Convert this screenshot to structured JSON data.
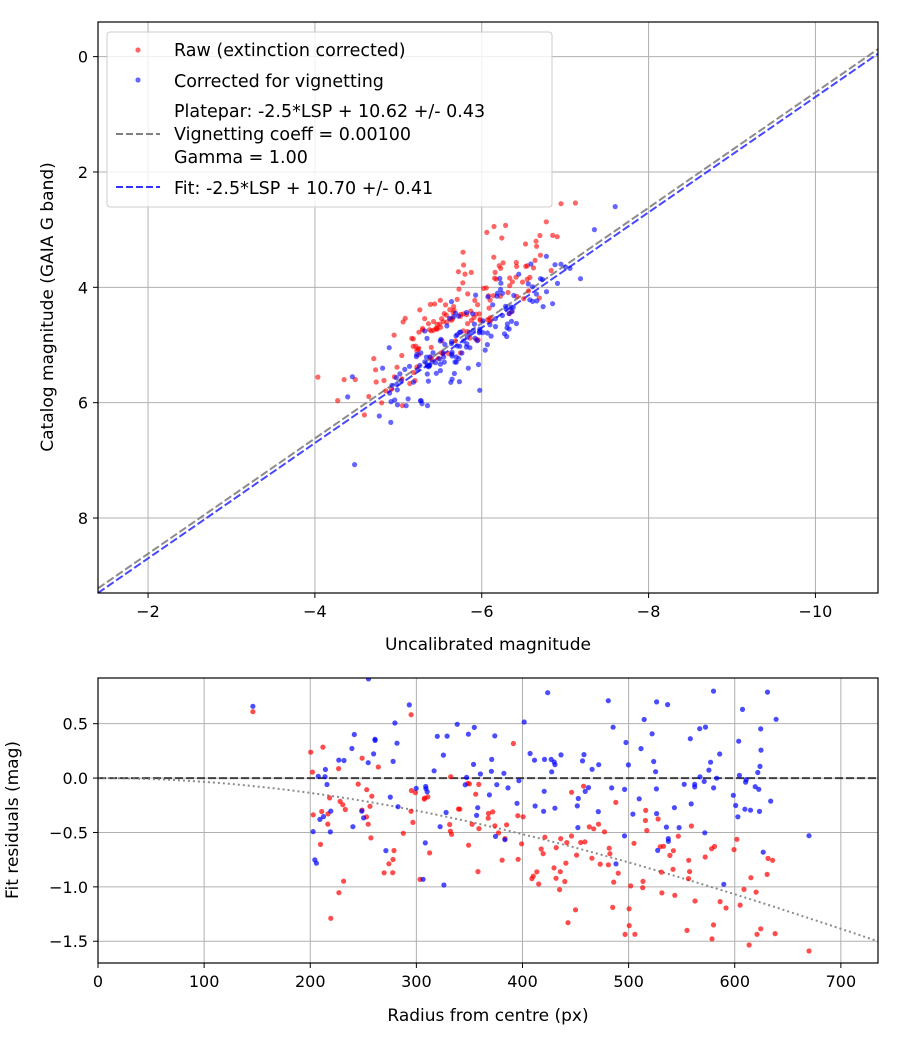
{
  "chart_data": [
    {
      "type": "scatter",
      "xlabel": "Uncalibrated magnitude",
      "ylabel": "Catalog magnitude (GAIA G band)",
      "xlim": [
        -1.4,
        -10.75
      ],
      "ylim": [
        9.3,
        -0.6
      ],
      "xticks": [
        -2,
        -4,
        -6,
        -8,
        -10
      ],
      "xtick_labels": [
        "−2",
        "−4",
        "−6",
        "−8",
        "−10"
      ],
      "yticks": [
        0,
        2,
        4,
        6,
        8
      ],
      "ytick_labels": [
        "0",
        "2",
        "4",
        "6",
        "8"
      ],
      "grid": true,
      "legend_position": "top-left",
      "series": [
        {
          "name": "Raw (extinction corrected)",
          "kind": "scatter",
          "color": "#ff0000",
          "cloud": {
            "count": 150,
            "seed": 7,
            "x_mean": -5.75,
            "x_sd": 0.55,
            "y_intercept": 10.62,
            "slope": 1.0,
            "y_offset": -0.45,
            "y_sd": 0.38,
            "extra_points": [
              [
                -6.95,
                2.55
              ],
              [
                -6.85,
                3.1
              ],
              [
                -6.65,
                3.2
              ],
              [
                -4.35,
                5.6
              ],
              [
                -5.05,
                6.05
              ]
            ]
          }
        },
        {
          "name": "Corrected for vignetting",
          "kind": "scatter",
          "color": "#0000ff",
          "cloud": {
            "count": 150,
            "seed": 13,
            "x_mean": -5.8,
            "x_sd": 0.6,
            "y_intercept": 10.7,
            "slope": 1.0,
            "y_offset": 0.0,
            "y_sd": 0.32,
            "extra_points": [
              [
                -7.6,
                2.6
              ],
              [
                -7.35,
                3.0
              ],
              [
                -4.45,
                5.55
              ],
              [
                -5.35,
                6.05
              ],
              [
                -6.95,
                3.6
              ]
            ]
          }
        },
        {
          "name": "Platepar: -2.5*LSP + 10.62 +/- 0.43",
          "name_lines": [
            "Platepar: -2.5*LSP + 10.62 +/- 0.43",
            "Vignetting coeff = 0.00100",
            "Gamma = 1.00"
          ],
          "kind": "line",
          "style": "dashed",
          "color": "#808080",
          "slope": 1.0,
          "intercept": 10.62
        },
        {
          "name": "Fit: -2.5*LSP + 10.70 +/- 0.41",
          "kind": "line",
          "style": "dashed",
          "color": "#3333ff",
          "slope": 1.0,
          "intercept": 10.7
        }
      ]
    },
    {
      "type": "scatter",
      "xlabel": "Radius from centre (px)",
      "ylabel": "Fit residuals (mag)",
      "xlim": [
        0,
        735
      ],
      "ylim": [
        -1.7,
        0.92
      ],
      "xticks": [
        0,
        100,
        200,
        300,
        400,
        500,
        600,
        700
      ],
      "xtick_labels": [
        "0",
        "100",
        "200",
        "300",
        "400",
        "500",
        "600",
        "700"
      ],
      "yticks": [
        0.5,
        0.0,
        -0.5,
        -1.0,
        -1.5
      ],
      "ytick_labels": [
        "0.5",
        "0.0",
        "−0.5",
        "−1.0",
        "−1.5"
      ],
      "grid": true,
      "series": [
        {
          "kind": "scatter",
          "color": "#ff0000",
          "cloud": {
            "count": 150,
            "seed": 21,
            "x_min": 200,
            "x_max": 640,
            "trend": "vignetting",
            "y_sd": 0.33,
            "extra_points": [
              [
                146,
                0.61
              ],
              [
                670,
                -1.59
              ],
              [
                638,
                -1.43
              ],
              [
                555,
                -1.4
              ],
              [
                580,
                -1.35
              ]
            ]
          }
        },
        {
          "kind": "scatter",
          "color": "#0000ff",
          "cloud": {
            "count": 150,
            "seed": 29,
            "x_min": 200,
            "x_max": 640,
            "trend": "flat",
            "y_sd": 0.38,
            "extra_points": [
              [
                146,
                0.66
              ],
              [
                670,
                -0.53
              ],
              [
                639,
                0.54
              ],
              [
                580,
                0.8
              ]
            ]
          }
        },
        {
          "kind": "line",
          "style": "dashed",
          "color": "#000000",
          "function": "zero"
        },
        {
          "kind": "line",
          "style": "dotted",
          "color": "#808080",
          "function": "vignetting",
          "vignetting_coeff": 0.001
        }
      ]
    }
  ]
}
